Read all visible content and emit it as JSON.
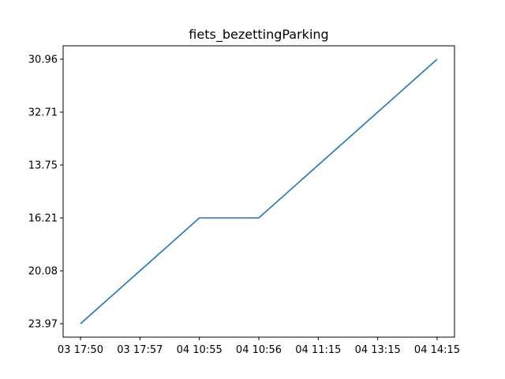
{
  "chart_data": {
    "type": "line",
    "title": "fiets_bezettingParking",
    "xlabel": "",
    "ylabel": "",
    "categories": [
      "03 17:50",
      "03 17:57",
      "04 10:55",
      "04 10:56",
      "04 11:15",
      "04 13:15",
      "04 14:15"
    ],
    "y_tick_labels": [
      "23.97",
      "20.08",
      "16.21",
      "13.75",
      "32.71",
      "30.96"
    ],
    "series": [
      {
        "name": "fiets_bezettingParking",
        "color": "#1f77b4",
        "values": [
          "23.97",
          "20.08",
          "16.21",
          "16.21",
          "13.75",
          "32.71",
          "30.96"
        ]
      }
    ],
    "grid": false,
    "legend": "none"
  }
}
